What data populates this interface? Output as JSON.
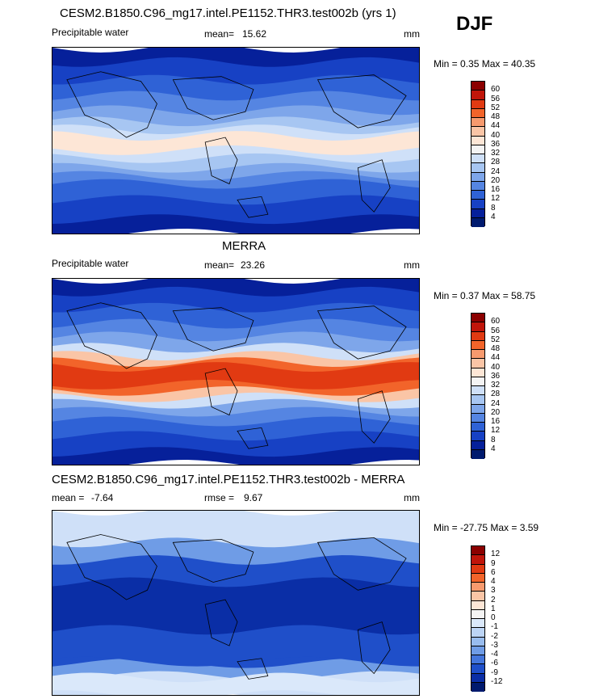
{
  "season": "DJF",
  "panels": [
    {
      "title": "CESM2.B1850.C96_mg17.intel.PE1152.THR3.test002b (yrs 1)",
      "variable": "Precipitable water",
      "mean_label": "mean=",
      "mean_value": "15.62",
      "units": "mm",
      "min_max": "Min =   0.35 Max =  40.35",
      "colorbar_levels": [
        "60",
        "56",
        "52",
        "48",
        "44",
        "40",
        "36",
        "32",
        "28",
        "24",
        "20",
        "16",
        "12",
        "8",
        "4"
      ],
      "colorbar_colors": [
        "#8b0000",
        "#c0150a",
        "#e13a12",
        "#f2642a",
        "#f79a6e",
        "#fac5a6",
        "#fde6d6",
        "#f4f4f4",
        "#cfe0f8",
        "#a7c6f2",
        "#7ea6ea",
        "#5585e2",
        "#2f62d6",
        "#1741c4",
        "#06209a",
        "#001a6e"
      ],
      "pattern": "model"
    },
    {
      "title": "MERRA",
      "variable": "Precipitable water",
      "mean_label": "mean=",
      "mean_value": "23.26",
      "units": "mm",
      "min_max": "Min =   0.37 Max =  58.75",
      "colorbar_levels": [
        "60",
        "56",
        "52",
        "48",
        "44",
        "40",
        "36",
        "32",
        "28",
        "24",
        "20",
        "16",
        "12",
        "8",
        "4"
      ],
      "colorbar_colors": [
        "#8b0000",
        "#c0150a",
        "#e13a12",
        "#f2642a",
        "#f79a6e",
        "#fac5a6",
        "#fde6d6",
        "#f4f4f4",
        "#cfe0f8",
        "#a7c6f2",
        "#7ea6ea",
        "#5585e2",
        "#2f62d6",
        "#1741c4",
        "#06209a",
        "#001a6e"
      ],
      "pattern": "obs"
    },
    {
      "title": "CESM2.B1850.C96_mg17.intel.PE1152.THR3.test002b - MERRA",
      "variable": "",
      "mean_label": "mean =",
      "mean_value": "-7.64",
      "rmse_label": "rmse =",
      "rmse_value": "9.67",
      "units": "mm",
      "min_max": "Min = -27.75 Max =   3.59",
      "colorbar_levels": [
        "12",
        "9",
        "6",
        "4",
        "3",
        "2",
        "1",
        "0",
        "-1",
        "-2",
        "-3",
        "-4",
        "-6",
        "-9",
        "-12"
      ],
      "colorbar_colors": [
        "#8b0000",
        "#c0150a",
        "#e13a12",
        "#f2642a",
        "#f79a6e",
        "#fac5a6",
        "#fde6d6",
        "#f4f4f4",
        "#dae8fa",
        "#bcd4f5",
        "#98bcee",
        "#6f9ce6",
        "#4476dc",
        "#1f4fc9",
        "#0a2ea6",
        "#001a6e"
      ],
      "pattern": "diff"
    }
  ]
}
